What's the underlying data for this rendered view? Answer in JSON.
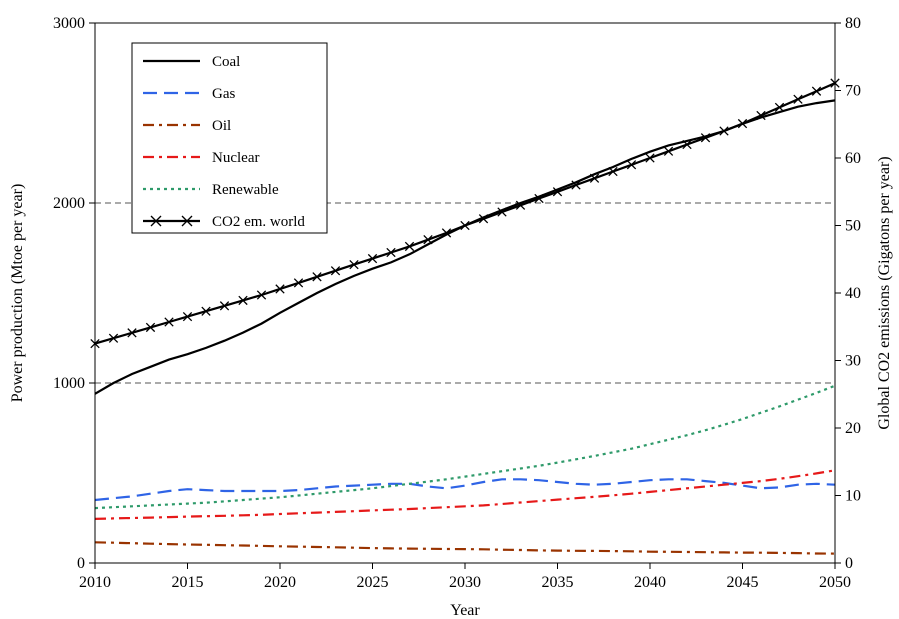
{
  "chart_data": {
    "type": "line",
    "title": "",
    "xlabel": "Year",
    "ylabel_left": "Power production (Mtoe per year)",
    "ylabel_right": "Global CO2 emissions (Gigatons per year)",
    "xlim": [
      2010,
      2050
    ],
    "ylim_left": [
      0,
      3000
    ],
    "ylim_right": [
      0,
      80
    ],
    "x_ticks": [
      "2010",
      "2015",
      "2020",
      "2025",
      "2030",
      "2035",
      "2040",
      "2045",
      "2050"
    ],
    "y_left_ticks": [
      "0",
      "1000",
      "2000",
      "3000"
    ],
    "y_right_ticks": [
      "0",
      "10",
      "20",
      "30",
      "40",
      "50",
      "60",
      "70",
      "80"
    ],
    "gridlines_left": [
      1000,
      2000
    ],
    "legend_position": "top-left",
    "x": [
      2010,
      2011,
      2012,
      2013,
      2014,
      2015,
      2016,
      2017,
      2018,
      2019,
      2020,
      2021,
      2022,
      2023,
      2024,
      2025,
      2026,
      2027,
      2028,
      2029,
      2030,
      2031,
      2032,
      2033,
      2034,
      2035,
      2036,
      2037,
      2038,
      2039,
      2040,
      2041,
      2042,
      2043,
      2044,
      2045,
      2046,
      2047,
      2048,
      2049,
      2050
    ],
    "series": [
      {
        "name": "Coal",
        "axis": "left",
        "color": "#000000",
        "style": "solid",
        "values": [
          940,
          1000,
          1050,
          1090,
          1130,
          1160,
          1195,
          1235,
          1280,
          1330,
          1390,
          1445,
          1500,
          1550,
          1595,
          1635,
          1670,
          1715,
          1770,
          1825,
          1875,
          1920,
          1960,
          2000,
          2035,
          2075,
          2115,
          2160,
          2200,
          2245,
          2285,
          2320,
          2345,
          2370,
          2400,
          2440,
          2475,
          2505,
          2535,
          2555,
          2570
        ]
      },
      {
        "name": "Gas",
        "axis": "left",
        "color": "#2f64e6",
        "style": "long-dash",
        "values": [
          350,
          360,
          370,
          385,
          400,
          410,
          405,
          400,
          400,
          400,
          400,
          405,
          415,
          425,
          430,
          435,
          440,
          440,
          425,
          415,
          430,
          450,
          465,
          465,
          460,
          450,
          440,
          435,
          440,
          450,
          460,
          465,
          465,
          455,
          445,
          430,
          415,
          420,
          435,
          440,
          435
        ]
      },
      {
        "name": "Oil",
        "axis": "left",
        "color": "#993300",
        "style": "dash-dot",
        "values": [
          115,
          113,
          110,
          107,
          105,
          103,
          101,
          99,
          97,
          95,
          93,
          91,
          89,
          87,
          85,
          83,
          81,
          80,
          79,
          78,
          77,
          76,
          74,
          72,
          70,
          69,
          68,
          67,
          66,
          65,
          63,
          62,
          61,
          60,
          59,
          58,
          57,
          56,
          55,
          53,
          52
        ]
      },
      {
        "name": "Nuclear",
        "axis": "left",
        "color": "#e61919",
        "style": "dash-dot",
        "values": [
          245,
          248,
          250,
          252,
          255,
          258,
          260,
          262,
          265,
          268,
          272,
          276,
          280,
          284,
          288,
          292,
          296,
          300,
          305,
          310,
          315,
          320,
          328,
          336,
          344,
          352,
          360,
          368,
          376,
          385,
          395,
          405,
          415,
          425,
          435,
          445,
          455,
          468,
          482,
          498,
          515
        ]
      },
      {
        "name": "Renewable",
        "axis": "left",
        "color": "#2e9a6a",
        "style": "dotted",
        "values": [
          305,
          310,
          315,
          320,
          325,
          330,
          335,
          342,
          350,
          358,
          365,
          375,
          385,
          395,
          405,
          415,
          428,
          440,
          452,
          465,
          480,
          495,
          510,
          525,
          540,
          558,
          576,
          595,
          615,
          635,
          660,
          685,
          710,
          738,
          768,
          800,
          835,
          870,
          908,
          945,
          985
        ]
      },
      {
        "name": "CO2 em. world",
        "axis": "right",
        "color": "#000000",
        "style": "solid-x-markers",
        "values": [
          32.5,
          33.3,
          34.1,
          34.9,
          35.7,
          36.5,
          37.3,
          38.1,
          38.9,
          39.7,
          40.6,
          41.5,
          42.4,
          43.3,
          44.2,
          45.1,
          46.0,
          46.9,
          47.9,
          48.9,
          50.0,
          51.0,
          52.0,
          53.0,
          54.0,
          55.0,
          56.0,
          57.0,
          58.0,
          59.0,
          60.0,
          61.0,
          62.0,
          63.0,
          64.0,
          65.1,
          66.3,
          67.5,
          68.7,
          69.9,
          71.1
        ]
      }
    ]
  }
}
